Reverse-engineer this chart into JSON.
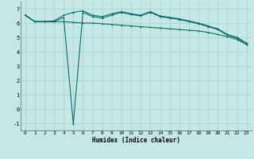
{
  "xlabel": "Humidex (Indice chaleur)",
  "ylabel": "",
  "bg_color": "#c5e8e5",
  "grid_color": "#aad4d0",
  "line_color": "#006666",
  "xlim": [
    -0.5,
    23.5
  ],
  "ylim": [
    -1.5,
    7.5
  ],
  "xticks": [
    0,
    1,
    2,
    3,
    4,
    5,
    6,
    7,
    8,
    9,
    10,
    11,
    12,
    13,
    14,
    15,
    16,
    17,
    18,
    19,
    20,
    21,
    22,
    23
  ],
  "yticks": [
    -1,
    0,
    1,
    2,
    3,
    4,
    5,
    6,
    7
  ],
  "line1_x": [
    0,
    1,
    2,
    3,
    4,
    5,
    6,
    7,
    8,
    9,
    10,
    11,
    12,
    13,
    14,
    15,
    16,
    17,
    18,
    19,
    20,
    21,
    22,
    23
  ],
  "line1_y": [
    6.55,
    6.1,
    6.1,
    6.1,
    6.1,
    6.05,
    6.0,
    6.0,
    5.95,
    5.9,
    5.85,
    5.8,
    5.75,
    5.7,
    5.65,
    5.6,
    5.55,
    5.5,
    5.45,
    5.35,
    5.2,
    5.05,
    4.85,
    4.5
  ],
  "line2_x": [
    0,
    1,
    2,
    3,
    4,
    5,
    6,
    7,
    8,
    9,
    10,
    11,
    12,
    13,
    14,
    15,
    16,
    17,
    18,
    19,
    20,
    21,
    22,
    23
  ],
  "line2_y": [
    6.55,
    6.1,
    6.1,
    6.1,
    6.4,
    -1.05,
    6.75,
    6.45,
    6.35,
    6.55,
    6.75,
    6.6,
    6.5,
    6.75,
    6.45,
    6.35,
    6.25,
    6.1,
    5.95,
    5.75,
    5.55,
    5.15,
    4.95,
    4.5
  ],
  "line3_x": [
    0,
    1,
    2,
    3,
    4,
    5,
    6,
    7,
    8,
    9,
    10,
    11,
    12,
    13,
    14,
    15,
    16,
    17,
    18,
    19,
    20,
    21,
    22,
    23
  ],
  "line3_y": [
    6.55,
    6.1,
    6.1,
    6.15,
    6.55,
    6.75,
    6.85,
    6.55,
    6.45,
    6.65,
    6.8,
    6.65,
    6.55,
    6.8,
    6.5,
    6.4,
    6.3,
    6.15,
    6.0,
    5.8,
    5.6,
    5.2,
    5.0,
    4.6
  ]
}
